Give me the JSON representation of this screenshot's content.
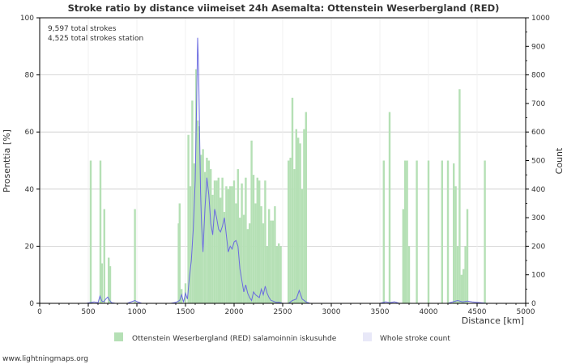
{
  "chart_data": {
    "type": "bar",
    "title": "Stroke ratio by distance viimeiset 24h Asemalta: Ottenstein Weserbergland (RED)",
    "annotations": [
      "9,597 total strokes",
      "4,525 total strokes station"
    ],
    "xlabel": "Distance   [km]",
    "ylabel_left": "Prosenttia   [%]",
    "ylabel_right": "Count",
    "xlim": [
      0,
      5000
    ],
    "ylim_left": [
      0,
      100
    ],
    "ylim_right": [
      0,
      1000
    ],
    "x_ticks": [
      0,
      500,
      1000,
      1500,
      2000,
      2500,
      3000,
      3500,
      4000,
      4500,
      5000
    ],
    "y_left_ticks": [
      0,
      20,
      40,
      60,
      80,
      100
    ],
    "y_right_ticks": [
      0,
      100,
      200,
      300,
      400,
      500,
      600,
      700,
      800,
      900,
      1000
    ],
    "grid": true,
    "legend_position": "bottom",
    "colors": {
      "ratio_bar": "#b5e0b5",
      "count_line": "#6a6ae0",
      "axis": "#000000",
      "grid": "#cccccc"
    },
    "series": [
      {
        "name": "Ottenstein Weserbergland (RED) salamoinnin iskusuhde",
        "kind": "bar",
        "axis": "left",
        "x": [
          525,
          625,
          640,
          665,
          710,
          725,
          980,
          1430,
          1440,
          1460,
          1500,
          1530,
          1550,
          1570,
          1590,
          1610,
          1625,
          1640,
          1660,
          1680,
          1700,
          1720,
          1740,
          1760,
          1780,
          1800,
          1820,
          1840,
          1860,
          1880,
          1900,
          1920,
          1940,
          1960,
          1980,
          2000,
          2020,
          2040,
          2060,
          2080,
          2100,
          2120,
          2140,
          2160,
          2180,
          2200,
          2220,
          2240,
          2260,
          2280,
          2300,
          2320,
          2340,
          2360,
          2380,
          2400,
          2420,
          2440,
          2460,
          2480,
          2560,
          2580,
          2600,
          2620,
          2640,
          2660,
          2680,
          2700,
          2720,
          2740,
          2760,
          3540,
          3600,
          3740,
          3760,
          3780,
          3800,
          3880,
          4000,
          4140,
          4200,
          4260,
          4280,
          4300,
          4320,
          4340,
          4360,
          4380,
          4400,
          4420,
          4580
        ],
        "values": [
          50,
          50,
          14,
          33,
          16,
          13,
          33,
          28,
          35,
          5,
          7,
          59,
          41,
          71,
          49,
          82,
          64,
          62,
          52,
          54,
          46,
          51,
          50,
          47,
          38,
          43,
          43,
          44,
          37,
          44,
          32,
          41,
          40,
          41,
          41,
          43,
          35,
          47,
          30,
          42,
          31,
          44,
          26,
          28,
          57,
          45,
          35,
          44,
          43,
          34,
          28,
          43,
          20,
          33,
          29,
          29,
          34,
          20,
          21,
          20,
          50,
          51,
          72,
          47,
          61,
          58,
          56,
          40,
          61,
          67,
          0,
          50,
          67,
          33,
          50,
          50,
          20,
          50,
          50,
          50,
          50,
          49,
          41,
          20,
          75,
          10,
          12,
          20,
          33,
          0,
          50
        ]
      },
      {
        "name": "Whole stroke count",
        "kind": "line",
        "axis": "right",
        "x": [
          0,
          480,
          560,
          600,
          620,
          640,
          660,
          680,
          700,
          720,
          740,
          780,
          900,
          980,
          1000,
          1050,
          1350,
          1400,
          1440,
          1460,
          1480,
          1500,
          1520,
          1540,
          1560,
          1580,
          1600,
          1615,
          1625,
          1635,
          1645,
          1655,
          1665,
          1680,
          1700,
          1720,
          1740,
          1760,
          1780,
          1800,
          1820,
          1840,
          1860,
          1880,
          1900,
          1920,
          1940,
          1960,
          1980,
          2000,
          2020,
          2040,
          2060,
          2080,
          2100,
          2120,
          2140,
          2160,
          2180,
          2200,
          2220,
          2240,
          2260,
          2280,
          2300,
          2320,
          2340,
          2360,
          2380,
          2400,
          2420,
          2440,
          2460,
          2480,
          2500,
          2560,
          2600,
          2640,
          2670,
          2700,
          2740,
          2780,
          3500,
          3560,
          3600,
          3650,
          3700,
          4200,
          4300,
          4350,
          4400,
          4450,
          4600,
          5000
        ],
        "values": [
          0,
          0,
          5,
          2,
          25,
          8,
          6,
          15,
          22,
          10,
          2,
          0,
          0,
          10,
          6,
          0,
          0,
          3,
          10,
          30,
          4,
          35,
          15,
          90,
          150,
          260,
          430,
          710,
          930,
          820,
          600,
          390,
          280,
          180,
          330,
          440,
          380,
          280,
          240,
          330,
          300,
          260,
          250,
          270,
          300,
          240,
          180,
          200,
          190,
          215,
          220,
          200,
          120,
          80,
          40,
          65,
          35,
          20,
          10,
          40,
          30,
          25,
          20,
          50,
          30,
          60,
          35,
          20,
          10,
          8,
          5,
          3,
          4,
          2,
          0,
          0,
          10,
          15,
          45,
          15,
          5,
          0,
          0,
          5,
          2,
          5,
          0,
          0,
          10,
          5,
          8,
          5,
          0,
          0
        ]
      }
    ]
  },
  "footer": {
    "watermark": "www.lightningmaps.org"
  }
}
